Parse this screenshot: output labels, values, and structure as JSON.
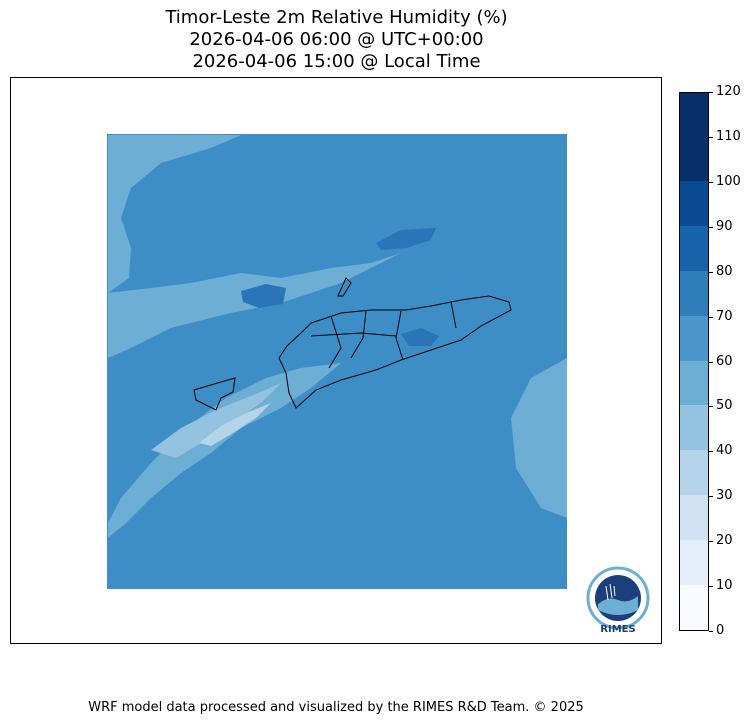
{
  "title": {
    "line1": "Timor-Leste 2m Relative Humidity (%)",
    "line2": "2026-04-06 06:00 @ UTC+00:00",
    "line3": "2026-04-06 15:00 @ Local Time"
  },
  "colorbar": {
    "levels": [
      0,
      10,
      20,
      30,
      40,
      50,
      60,
      70,
      80,
      90,
      100,
      110,
      120
    ],
    "labels": [
      "0",
      "10",
      "20",
      "30",
      "40",
      "50",
      "60",
      "70",
      "80",
      "90",
      "100",
      "110",
      "120"
    ],
    "colors": [
      "#f7fbff",
      "#e3eef9",
      "#cfe1f2",
      "#b5d4e9",
      "#93c3df",
      "#6daed5",
      "#4b97c9",
      "#2f7ebc",
      "#1864aa",
      "#0a4a90",
      "#08306b",
      "#08306b"
    ]
  },
  "map": {
    "background_color": "#3d8ec6",
    "light_band_colors": [
      "#6daed5",
      "#93c3df",
      "#b5d4e9"
    ],
    "dark_patch_color": "#2a74b8"
  },
  "logo": {
    "text": "RIMES",
    "ring_text": "Regional Integrated Multi-Hazard Early Warning System"
  },
  "footer": "WRF model data processed and visualized by the RIMES R&D Team. © 2025"
}
